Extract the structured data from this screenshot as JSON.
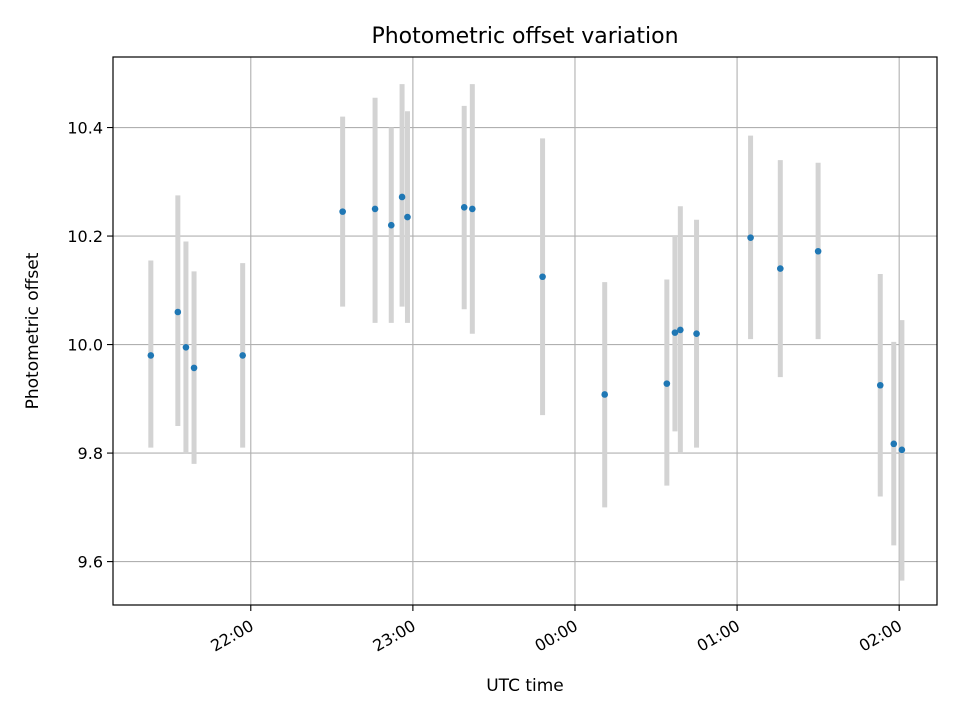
{
  "chart_data": {
    "type": "scatter",
    "title": "Photometric offset variation",
    "xlabel": "UTC time",
    "ylabel": "Photometric offset",
    "xlim": [
      "21:09",
      "02:14"
    ],
    "ylim": [
      9.52,
      10.53
    ],
    "grid": true,
    "x_tick_labels": [
      "22:00",
      "23:00",
      "00:00",
      "01:00",
      "02:00"
    ],
    "y_tick_values": [
      9.6,
      9.8,
      10.0,
      10.2,
      10.4
    ],
    "y_tick_labels": [
      "9.6",
      "9.8",
      "10.0",
      "10.2",
      "10.4"
    ],
    "colors": {
      "point": "#1f77b4",
      "errorbar": "#d3d3d3",
      "grid": "#b0b0b0"
    },
    "points": [
      {
        "x": "21:23",
        "y": 9.98,
        "low": 9.81,
        "high": 10.155
      },
      {
        "x": "21:33",
        "y": 10.06,
        "low": 9.85,
        "high": 10.275
      },
      {
        "x": "21:36",
        "y": 9.995,
        "low": 9.8,
        "high": 10.19
      },
      {
        "x": "21:39",
        "y": 9.957,
        "low": 9.78,
        "high": 10.135
      },
      {
        "x": "21:57",
        "y": 9.98,
        "low": 9.81,
        "high": 10.15
      },
      {
        "x": "22:34",
        "y": 10.245,
        "low": 10.07,
        "high": 10.42
      },
      {
        "x": "22:46",
        "y": 10.25,
        "low": 10.04,
        "high": 10.455
      },
      {
        "x": "22:52",
        "y": 10.22,
        "low": 10.04,
        "high": 10.4
      },
      {
        "x": "22:56",
        "y": 10.272,
        "low": 10.07,
        "high": 10.48
      },
      {
        "x": "22:58",
        "y": 10.235,
        "low": 10.04,
        "high": 10.43
      },
      {
        "x": "23:19",
        "y": 10.253,
        "low": 10.065,
        "high": 10.44
      },
      {
        "x": "23:22",
        "y": 10.25,
        "low": 10.02,
        "high": 10.48
      },
      {
        "x": "23:48",
        "y": 10.125,
        "low": 9.87,
        "high": 10.38
      },
      {
        "x": "00:11",
        "y": 9.908,
        "low": 9.7,
        "high": 10.115
      },
      {
        "x": "00:34",
        "y": 9.928,
        "low": 9.74,
        "high": 10.12
      },
      {
        "x": "00:37",
        "y": 10.022,
        "low": 9.84,
        "high": 10.2
      },
      {
        "x": "00:39",
        "y": 10.027,
        "low": 9.8,
        "high": 10.255
      },
      {
        "x": "00:45",
        "y": 10.02,
        "low": 9.81,
        "high": 10.23
      },
      {
        "x": "01:05",
        "y": 10.197,
        "low": 10.01,
        "high": 10.385
      },
      {
        "x": "01:16",
        "y": 10.14,
        "low": 9.94,
        "high": 10.34
      },
      {
        "x": "01:30",
        "y": 10.172,
        "low": 10.01,
        "high": 10.335
      },
      {
        "x": "01:53",
        "y": 9.925,
        "low": 9.72,
        "high": 10.13
      },
      {
        "x": "01:58",
        "y": 9.817,
        "low": 9.63,
        "high": 10.005
      },
      {
        "x": "02:01",
        "y": 9.806,
        "low": 9.565,
        "high": 10.045
      }
    ]
  }
}
